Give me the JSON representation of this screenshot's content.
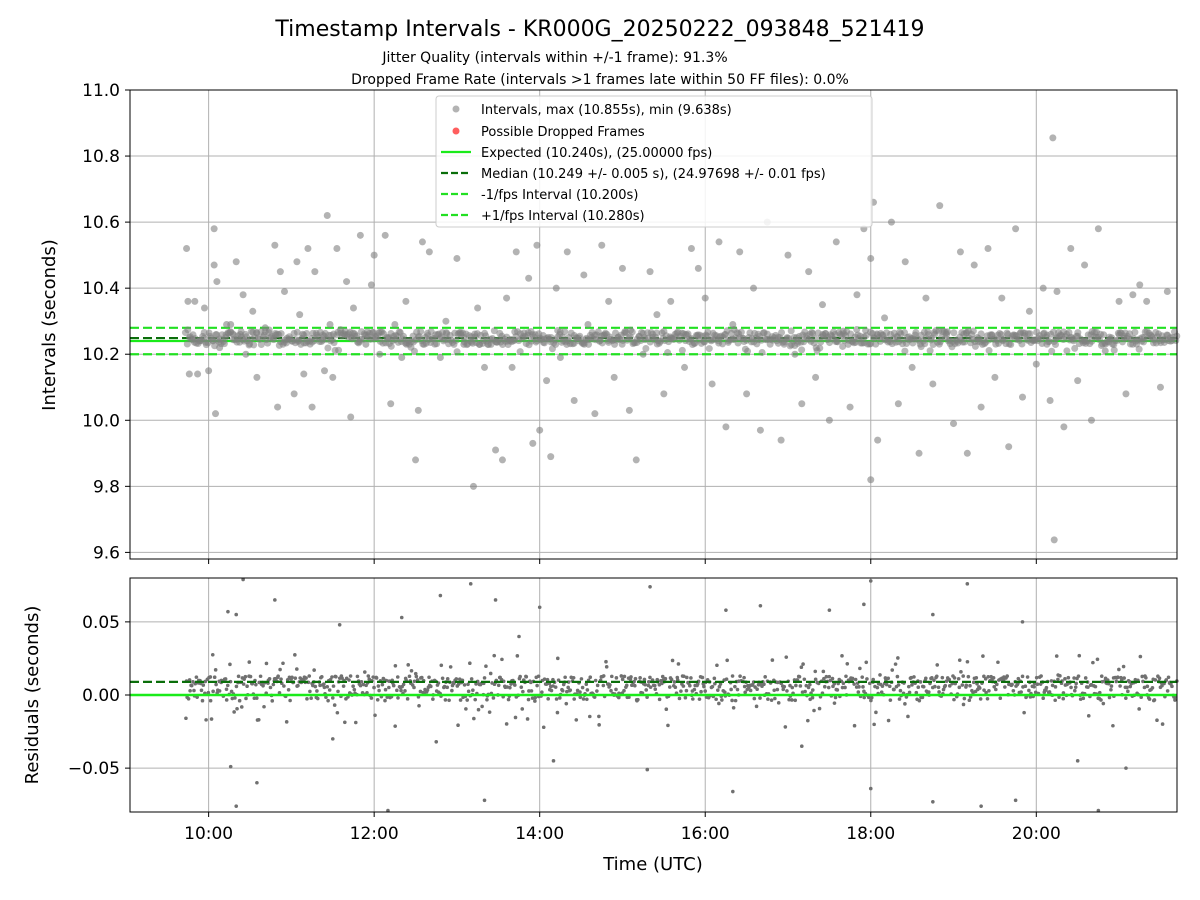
{
  "title": "Timestamp Intervals - KR000G_20250222_093848_521419",
  "subtitle1": "Jitter Quality (intervals within +/-1 frame): 91.3%",
  "subtitle2": "Dropped Frame Rate (intervals >1 frames late within 50 FF files): 0.0%",
  "colors": {
    "points": "#808080",
    "dropped": "#ff4d4d",
    "expected": "#1aeb1a",
    "median": "#0a6e0a",
    "fps_band": "#22e022",
    "grid": "#b0b0b0"
  },
  "chart_data": [
    {
      "type": "scatter",
      "panel": "top",
      "ylabel": "Intervals (seconds)",
      "xlim": [
        "09:03",
        "21:42"
      ],
      "ylim": [
        9.58,
        11.0
      ],
      "x_ticks": [
        "10:00",
        "12:00",
        "14:00",
        "16:00",
        "18:00",
        "20:00"
      ],
      "y_ticks": [
        "9.6",
        "9.8",
        "10.0",
        "10.2",
        "10.4",
        "10.6",
        "10.8",
        "11.0"
      ],
      "grid": true,
      "legend_placement": "top-center",
      "legend": [
        "Intervals, max (10.855s), min (9.638s)",
        "Possible Dropped Frames",
        "Expected (10.240s), (25.00000 fps)",
        "Median (10.249 +/- 0.005 s), (24.97698 +/- 0.01 fps)",
        "-1/fps Interval (10.200s)",
        "+1/fps Interval (10.280s)"
      ],
      "expected": 10.24,
      "median": 10.249,
      "minus_fps_interval": 10.2,
      "plus_fps_interval": 10.28,
      "max": 10.855,
      "min": 9.638,
      "data_start": "09:43",
      "data_end": "21:42",
      "series": [
        {
          "name": "Intervals, max (10.855s), min (9.638s)",
          "points": [
            [
              "09:44",
              10.52
            ],
            [
              "09:45",
              10.36
            ],
            [
              "09:46",
              10.14
            ],
            [
              "09:50",
              10.36
            ],
            [
              "09:52",
              10.14
            ],
            [
              "09:57",
              10.34
            ],
            [
              "10:00",
              10.15
            ],
            [
              "10:04",
              10.58
            ],
            [
              "10:04",
              10.47
            ],
            [
              "10:05",
              10.02
            ],
            [
              "10:06",
              10.42
            ],
            [
              "10:08",
              10.22
            ],
            [
              "10:13",
              10.29
            ],
            [
              "10:16",
              10.29
            ],
            [
              "10:20",
              10.48
            ],
            [
              "10:23",
              10.26
            ],
            [
              "10:25",
              10.38
            ],
            [
              "10:27",
              10.2
            ],
            [
              "10:32",
              10.33
            ],
            [
              "10:35",
              10.13
            ],
            [
              "10:41",
              10.28
            ],
            [
              "10:48",
              10.53
            ],
            [
              "10:50",
              10.04
            ],
            [
              "10:52",
              10.45
            ],
            [
              "10:55",
              10.39
            ],
            [
              "11:02",
              10.08
            ],
            [
              "11:04",
              10.48
            ],
            [
              "11:06",
              10.32
            ],
            [
              "11:09",
              10.14
            ],
            [
              "11:12",
              10.52
            ],
            [
              "11:15",
              10.04
            ],
            [
              "11:17",
              10.45
            ],
            [
              "11:24",
              10.15
            ],
            [
              "11:26",
              10.62
            ],
            [
              "11:28",
              10.29
            ],
            [
              "11:30",
              10.13
            ],
            [
              "11:33",
              10.52
            ],
            [
              "11:40",
              10.42
            ],
            [
              "11:43",
              10.01
            ],
            [
              "11:45",
              10.34
            ],
            [
              "11:50",
              10.56
            ],
            [
              "11:54",
              10.23
            ],
            [
              "11:58",
              10.41
            ],
            [
              "12:00",
              10.5
            ],
            [
              "12:04",
              10.2
            ],
            [
              "12:08",
              10.56
            ],
            [
              "12:12",
              10.05
            ],
            [
              "12:15",
              10.29
            ],
            [
              "12:20",
              10.19
            ],
            [
              "12:23",
              10.36
            ],
            [
              "12:30",
              9.88
            ],
            [
              "12:32",
              10.03
            ],
            [
              "12:35",
              10.54
            ],
            [
              "12:40",
              10.51
            ],
            [
              "12:48",
              10.19
            ],
            [
              "12:52",
              10.3
            ],
            [
              "13:00",
              10.49
            ],
            [
              "13:05",
              10.23
            ],
            [
              "13:12",
              9.8
            ],
            [
              "13:15",
              10.34
            ],
            [
              "13:20",
              10.16
            ],
            [
              "13:28",
              9.91
            ],
            [
              "13:33",
              9.88
            ],
            [
              "13:36",
              10.37
            ],
            [
              "13:40",
              10.16
            ],
            [
              "13:43",
              10.51
            ],
            [
              "13:52",
              10.43
            ],
            [
              "13:55",
              9.93
            ],
            [
              "13:58",
              10.53
            ],
            [
              "14:00",
              9.97
            ],
            [
              "14:05",
              10.12
            ],
            [
              "14:08",
              9.89
            ],
            [
              "14:12",
              10.4
            ],
            [
              "14:15",
              10.19
            ],
            [
              "14:20",
              10.51
            ],
            [
              "14:25",
              10.06
            ],
            [
              "14:32",
              10.44
            ],
            [
              "14:35",
              10.29
            ],
            [
              "14:40",
              10.02
            ],
            [
              "14:45",
              10.53
            ],
            [
              "14:50",
              10.36
            ],
            [
              "14:54",
              10.13
            ],
            [
              "15:00",
              10.46
            ],
            [
              "15:05",
              10.03
            ],
            [
              "15:10",
              9.88
            ],
            [
              "15:15",
              10.2
            ],
            [
              "15:20",
              10.45
            ],
            [
              "15:25",
              10.32
            ],
            [
              "15:30",
              10.08
            ],
            [
              "15:35",
              10.36
            ],
            [
              "15:45",
              10.16
            ],
            [
              "15:50",
              10.52
            ],
            [
              "15:55",
              10.46
            ],
            [
              "16:00",
              10.37
            ],
            [
              "16:05",
              10.11
            ],
            [
              "16:10",
              10.54
            ],
            [
              "16:15",
              9.98
            ],
            [
              "16:20",
              10.29
            ],
            [
              "16:25",
              10.51
            ],
            [
              "16:30",
              10.08
            ],
            [
              "16:35",
              10.4
            ],
            [
              "16:40",
              9.97
            ],
            [
              "16:45",
              10.6
            ],
            [
              "16:55",
              9.94
            ],
            [
              "17:00",
              10.5
            ],
            [
              "17:05",
              10.2
            ],
            [
              "17:10",
              10.05
            ],
            [
              "17:15",
              10.45
            ],
            [
              "17:20",
              10.13
            ],
            [
              "17:25",
              10.35
            ],
            [
              "17:30",
              10.0
            ],
            [
              "17:35",
              10.54
            ],
            [
              "17:40",
              10.27
            ],
            [
              "17:45",
              10.04
            ],
            [
              "17:50",
              10.38
            ],
            [
              "17:55",
              10.58
            ],
            [
              "18:00",
              10.49
            ],
            [
              "18:00",
              9.82
            ],
            [
              "18:02",
              10.66
            ],
            [
              "18:05",
              9.94
            ],
            [
              "18:10",
              10.31
            ],
            [
              "18:15",
              10.6
            ],
            [
              "18:20",
              10.05
            ],
            [
              "18:25",
              10.48
            ],
            [
              "18:30",
              10.16
            ],
            [
              "18:35",
              9.9
            ],
            [
              "18:40",
              10.37
            ],
            [
              "18:45",
              10.11
            ],
            [
              "18:50",
              10.65
            ],
            [
              "18:55",
              10.26
            ],
            [
              "19:00",
              9.99
            ],
            [
              "19:05",
              10.51
            ],
            [
              "19:10",
              9.9
            ],
            [
              "19:15",
              10.47
            ],
            [
              "19:20",
              10.04
            ],
            [
              "19:25",
              10.52
            ],
            [
              "19:30",
              10.13
            ],
            [
              "19:35",
              10.37
            ],
            [
              "19:40",
              9.92
            ],
            [
              "19:45",
              10.58
            ],
            [
              "19:50",
              10.07
            ],
            [
              "19:55",
              10.33
            ],
            [
              "20:00",
              10.17
            ],
            [
              "20:05",
              10.4
            ],
            [
              "20:10",
              10.06
            ],
            [
              "20:12",
              10.855
            ],
            [
              "20:15",
              10.39
            ],
            [
              "20:20",
              9.98
            ],
            [
              "20:25",
              10.52
            ],
            [
              "20:30",
              10.12
            ],
            [
              "20:35",
              10.47
            ],
            [
              "20:40",
              10.0
            ],
            [
              "20:45",
              10.58
            ],
            [
              "20:50",
              10.21
            ],
            [
              "21:00",
              10.36
            ],
            [
              "21:05",
              10.08
            ],
            [
              "21:10",
              10.38
            ],
            [
              "21:15",
              10.41
            ],
            [
              "21:20",
              10.36
            ],
            [
              "21:30",
              10.1
            ],
            [
              "21:35",
              10.39
            ],
            [
              "20:13",
              9.638
            ]
          ]
        },
        {
          "name": "Possible Dropped Frames",
          "points": []
        }
      ]
    },
    {
      "type": "scatter",
      "panel": "bottom",
      "xlabel": "Time (UTC)",
      "ylabel": "Residuals (seconds)",
      "xlim": [
        "09:03",
        "21:42"
      ],
      "ylim": [
        -0.08,
        0.08
      ],
      "x_ticks": [
        "10:00",
        "12:00",
        "14:00",
        "16:00",
        "18:00",
        "20:00"
      ],
      "y_ticks": [
        "−0.05",
        "0.00",
        "0.05"
      ],
      "grid": true,
      "median_residual": 0.009,
      "expected_residual": 0.0,
      "outliers": [
        [
          "10:14",
          0.057
        ],
        [
          "10:20",
          0.055
        ],
        [
          "10:25",
          0.079
        ],
        [
          "10:48",
          0.065
        ],
        [
          "11:35",
          0.048
        ],
        [
          "12:20",
          0.053
        ],
        [
          "12:48",
          0.068
        ],
        [
          "13:10",
          0.076
        ],
        [
          "13:28",
          0.065
        ],
        [
          "13:45",
          0.04
        ],
        [
          "14:00",
          0.06
        ],
        [
          "15:20",
          0.074
        ],
        [
          "16:15",
          0.058
        ],
        [
          "16:40",
          0.061
        ],
        [
          "17:30",
          0.058
        ],
        [
          "17:55",
          0.062
        ],
        [
          "18:00",
          0.078
        ],
        [
          "18:45",
          0.055
        ],
        [
          "19:10",
          0.076
        ],
        [
          "19:50",
          0.05
        ],
        [
          "10:16",
          -0.049
        ],
        [
          "10:20",
          -0.076
        ],
        [
          "10:35",
          -0.06
        ],
        [
          "11:30",
          -0.03
        ],
        [
          "12:10",
          -0.079
        ],
        [
          "12:45",
          -0.032
        ],
        [
          "13:20",
          -0.072
        ],
        [
          "14:10",
          -0.045
        ],
        [
          "15:18",
          -0.051
        ],
        [
          "16:20",
          -0.066
        ],
        [
          "17:10",
          -0.035
        ],
        [
          "18:00",
          -0.064
        ],
        [
          "18:45",
          -0.073
        ],
        [
          "19:20",
          -0.076
        ],
        [
          "19:45",
          -0.072
        ],
        [
          "20:30",
          -0.045
        ],
        [
          "20:45",
          -0.079
        ],
        [
          "21:05",
          -0.05
        ]
      ]
    }
  ]
}
